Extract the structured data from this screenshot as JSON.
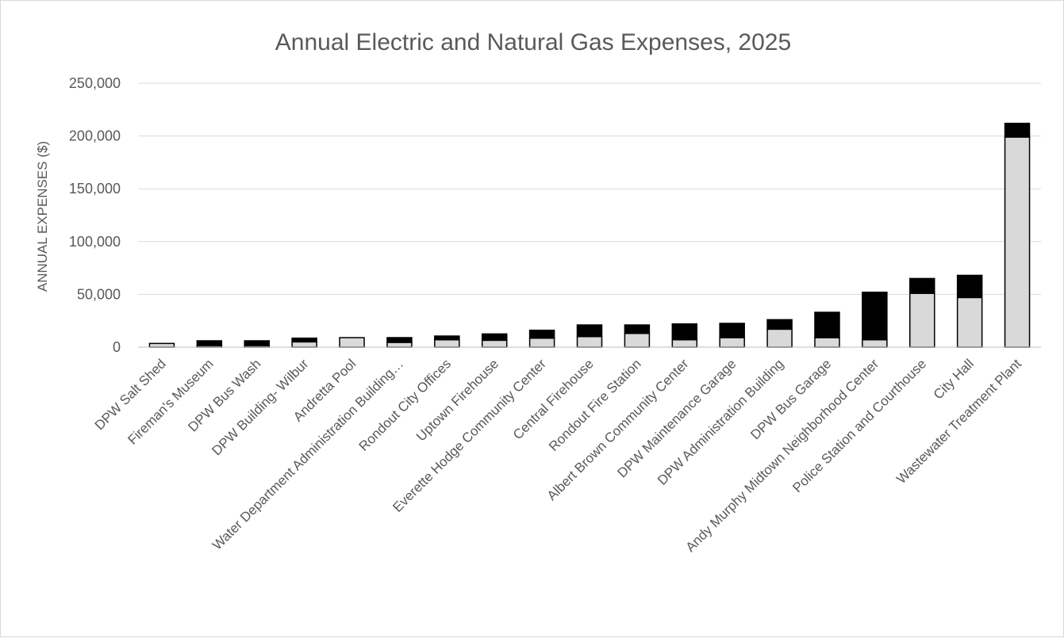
{
  "chart_data": {
    "type": "bar",
    "stacked": true,
    "title": "Annual Electric and Natural Gas Expenses, 2025",
    "ylabel": "ANNUAL EXPENSES ($)",
    "ylim": [
      0,
      250000
    ],
    "yticks": [
      0,
      50000,
      100000,
      150000,
      200000,
      250000
    ],
    "ytick_labels": [
      "0",
      "50,000",
      "100,000",
      "150,000",
      "200,000",
      "250,000"
    ],
    "grid": true,
    "categories": [
      "DPW Salt Shed",
      "Fireman's Museum",
      "DPW Bus Wash",
      "DPW Building- Wilbur",
      "Andretta Pool",
      "Water Department Administration Building…",
      "Rondout City Offices",
      "Uptown Firehouse",
      "Everette Hodge Community Center",
      "Central Firehouse",
      "Rondout Fire Station",
      "Albert Brown Community Center",
      "DPW Maintenance Garage",
      "DPW Administration Building",
      "DPW Bus Garage",
      "Andy Murphy Midtown Neighborhood Center",
      "Police Station and Courthouse",
      "City Hall",
      "Wastewater Treatment Plant"
    ],
    "series": [
      {
        "color": "#d9d9d9",
        "values": [
          3500,
          1500,
          1500,
          5000,
          9000,
          4500,
          7000,
          6500,
          8500,
          10000,
          13000,
          7000,
          9000,
          17000,
          9000,
          7000,
          51000,
          47000,
          199000
        ]
      },
      {
        "color": "#000000",
        "values": [
          0,
          4500,
          4500,
          3500,
          0,
          4500,
          3500,
          6000,
          7500,
          11000,
          8000,
          15000,
          13500,
          9000,
          24000,
          45000,
          14000,
          21000,
          13000
        ]
      }
    ]
  }
}
